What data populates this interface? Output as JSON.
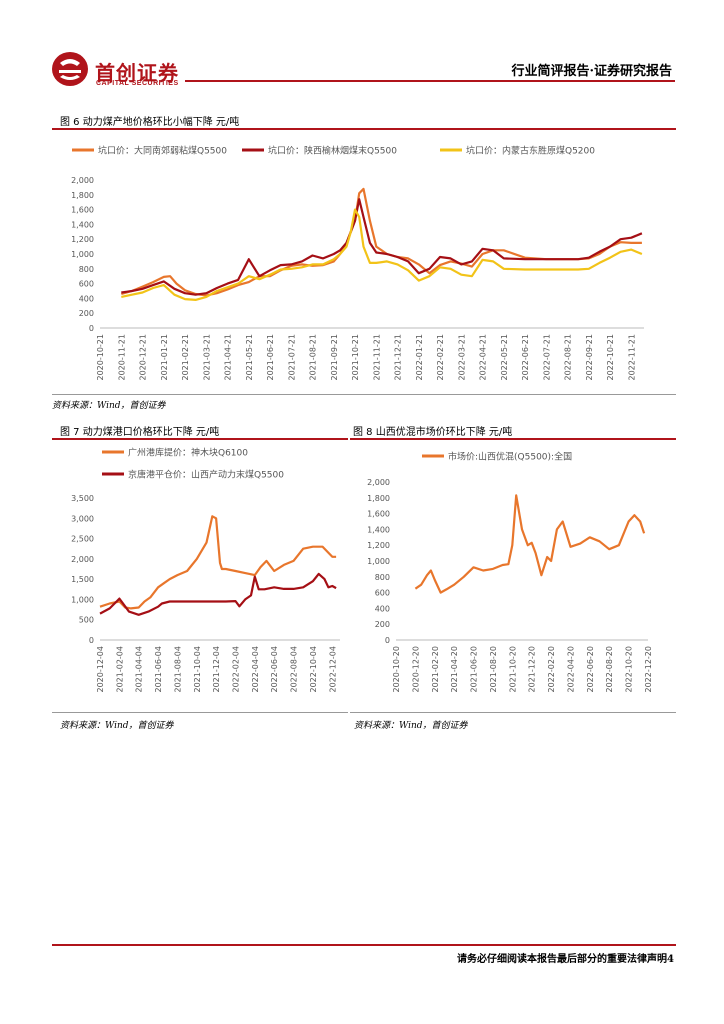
{
  "header": {
    "logo_cn": "首创证券",
    "logo_en": "CAPITAL SECURITIES",
    "right_title": "行业简评报告·证券研究报告",
    "brand_color": "#b0141b"
  },
  "fig6": {
    "title": "图 6 动力煤产地价格环比小幅下降 元/吨",
    "source": "资料来源：Wind，首创证券"
  },
  "fig7": {
    "title": "图 7 动力煤港口价格环比下降 元/吨",
    "source": "资料来源：Wind，首创证券"
  },
  "fig8": {
    "title": "图 8 山西优混市场价环比下降 元/吨",
    "source": "资料来源：Wind，首创证券"
  },
  "footer": {
    "text": "请务必仔细阅读本报告最后部分的重要法律声明4"
  },
  "chart_data": [
    {
      "id": "fig6",
      "type": "line",
      "ylim": [
        0,
        2000
      ],
      "yticks": [
        "0",
        "200",
        "400",
        "600",
        "800",
        "1,000",
        "1,200",
        "1,400",
        "1,600",
        "1,800",
        "2,000"
      ],
      "xticks": [
        "2020-10-21",
        "2020-11-21",
        "2020-12-21",
        "2021-01-21",
        "2021-02-21",
        "2021-03-21",
        "2021-04-21",
        "2021-05-21",
        "2021-06-21",
        "2021-07-21",
        "2021-08-21",
        "2021-09-21",
        "2021-10-21",
        "2021-11-21",
        "2021-12-21",
        "2022-01-21",
        "2022-02-21",
        "2022-03-21",
        "2022-04-21",
        "2022-05-21",
        "2022-06-21",
        "2022-07-21",
        "2022-08-21",
        "2022-09-21",
        "2022-10-21",
        "2022-11-21"
      ],
      "x_range": [
        0,
        25.6
      ],
      "series": [
        {
          "name": "坑口价：大同南郊弱粘煤Q5500",
          "color": "#e8762c",
          "x": [
            1,
            1.5,
            2,
            2.5,
            3,
            3.3,
            3.6,
            4,
            4.5,
            5,
            5.5,
            6,
            6.5,
            7,
            7.5,
            8,
            8.5,
            9,
            9.5,
            10,
            10.5,
            11,
            11.3,
            11.6,
            11.8,
            12,
            12.2,
            12.4,
            12.7,
            13,
            13.5,
            14,
            14.5,
            15,
            15.5,
            16,
            16.5,
            17,
            17.5,
            18,
            18.5,
            19,
            20,
            21,
            22,
            22.5,
            23,
            23.5,
            24,
            24.5,
            25,
            25.5
          ],
          "y": [
            460,
            500,
            560,
            620,
            690,
            700,
            600,
            510,
            460,
            440,
            470,
            520,
            580,
            620,
            700,
            700,
            780,
            840,
            860,
            840,
            850,
            900,
            1000,
            1150,
            1300,
            1450,
            1820,
            1880,
            1450,
            1100,
            1000,
            960,
            940,
            860,
            740,
            850,
            900,
            870,
            830,
            1000,
            1050,
            1050,
            950,
            930,
            930,
            930,
            940,
            1000,
            1100,
            1160,
            1150,
            1150
          ]
        },
        {
          "name": "坑口价：陕西榆林烟煤末Q5500",
          "color": "#a50f15",
          "x": [
            1,
            1.5,
            2,
            2.5,
            3,
            3.5,
            4,
            4.5,
            5,
            5.5,
            6,
            6.5,
            7,
            7.5,
            8,
            8.5,
            9,
            9.5,
            10,
            10.5,
            11,
            11.3,
            11.6,
            11.8,
            12,
            12.2,
            12.4,
            12.7,
            13,
            13.5,
            14,
            14.5,
            15,
            15.5,
            16,
            16.5,
            17,
            17.5,
            18,
            18.5,
            19,
            20,
            21,
            22,
            22.5,
            23,
            23.5,
            24,
            24.5,
            25,
            25.5
          ],
          "y": [
            480,
            500,
            530,
            580,
            630,
            530,
            470,
            450,
            470,
            540,
            600,
            650,
            930,
            700,
            780,
            850,
            860,
            900,
            980,
            940,
            1000,
            1050,
            1150,
            1300,
            1450,
            1740,
            1500,
            1150,
            1020,
            1000,
            960,
            900,
            740,
            800,
            960,
            940,
            860,
            900,
            1070,
            1050,
            940,
            930,
            930,
            930,
            930,
            950,
            1030,
            1100,
            1200,
            1220,
            1280
          ]
        },
        {
          "name": "坑口价：内蒙古东胜原煤Q5200",
          "color": "#f2c318",
          "x": [
            1,
            1.5,
            2,
            2.5,
            3,
            3.5,
            4,
            4.5,
            5,
            5.5,
            6,
            6.5,
            7,
            7.5,
            8,
            8.5,
            9,
            9.5,
            10,
            10.5,
            11,
            11.3,
            11.6,
            11.8,
            12,
            12.2,
            12.4,
            12.7,
            13,
            13.5,
            14,
            14.5,
            15,
            15.5,
            16,
            16.5,
            17,
            17.5,
            18,
            18.5,
            19,
            20,
            21,
            22,
            22.5,
            23,
            23.5,
            24,
            24.5,
            25,
            25.5
          ],
          "y": [
            420,
            450,
            480,
            540,
            580,
            450,
            390,
            380,
            420,
            500,
            550,
            600,
            700,
            660,
            720,
            790,
            800,
            820,
            860,
            860,
            930,
            1000,
            1100,
            1300,
            1600,
            1500,
            1100,
            880,
            880,
            900,
            860,
            780,
            640,
            700,
            820,
            800,
            720,
            700,
            920,
            900,
            800,
            790,
            790,
            790,
            790,
            800,
            880,
            950,
            1030,
            1060,
            1000
          ]
        }
      ]
    },
    {
      "id": "fig7",
      "type": "line",
      "ylim": [
        0,
        3500
      ],
      "yticks": [
        "0",
        "500",
        "1,000",
        "1,500",
        "2,000",
        "2,500",
        "3,000",
        "3,500"
      ],
      "xticks": [
        "2020-12-04",
        "2021-02-04",
        "2021-04-04",
        "2021-06-04",
        "2021-08-04",
        "2021-10-04",
        "2021-12-04",
        "2022-02-04",
        "2022-04-04",
        "2022-06-04",
        "2022-08-04",
        "2022-10-04",
        "2022-12-04"
      ],
      "x_range": [
        0,
        12.4
      ],
      "series": [
        {
          "name": "广州港库提价：神木块Q6100",
          "color": "#e8762c",
          "x": [
            0,
            0.5,
            1,
            1.3,
            1.6,
            2,
            2.3,
            2.6,
            3,
            3.3,
            3.6,
            4,
            4.5,
            5,
            5.5,
            5.8,
            6,
            6.2,
            6.3,
            6.5,
            7,
            7.5,
            8,
            8.3,
            8.6,
            9,
            9.5,
            10,
            10.5,
            11,
            11.5,
            12,
            12.2
          ],
          "y": [
            820,
            900,
            950,
            800,
            780,
            800,
            950,
            1050,
            1300,
            1400,
            1500,
            1600,
            1700,
            2000,
            2400,
            3050,
            3000,
            1900,
            1750,
            1750,
            1700,
            1650,
            1600,
            1800,
            1950,
            1700,
            1850,
            1950,
            2250,
            2300,
            2300,
            2050,
            2050
          ]
        },
        {
          "name": "京唐港平仓价：山西产动力末煤Q5500",
          "color": "#a50f15",
          "x": [
            0,
            0.5,
            1,
            1.5,
            2,
            2.5,
            3,
            3.2,
            3.6,
            4,
            4.5,
            5,
            5.5,
            6,
            6.5,
            7,
            7.2,
            7.5,
            7.8,
            8,
            8.2,
            8.5,
            9,
            9.5,
            10,
            10.5,
            11,
            11.3,
            11.6,
            11.8,
            12,
            12.2
          ],
          "y": [
            650,
            780,
            1020,
            700,
            620,
            700,
            820,
            900,
            950,
            950,
            950,
            950,
            950,
            950,
            950,
            960,
            830,
            1000,
            1100,
            1560,
            1250,
            1250,
            1300,
            1260,
            1260,
            1300,
            1450,
            1630,
            1500,
            1300,
            1330,
            1280
          ]
        }
      ]
    },
    {
      "id": "fig8",
      "type": "line",
      "ylim": [
        0,
        2000
      ],
      "yticks": [
        "0",
        "200",
        "400",
        "600",
        "800",
        "1,000",
        "1,200",
        "1,400",
        "1,600",
        "1,800",
        "2,000"
      ],
      "xticks": [
        "2020-10-20",
        "2020-12-20",
        "2021-02-20",
        "2021-04-20",
        "2021-06-20",
        "2021-08-20",
        "2021-10-20",
        "2021-12-20",
        "2022-02-20",
        "2022-04-20",
        "2022-06-20",
        "2022-08-20",
        "2022-10-20",
        "2022-12-20"
      ],
      "x_range": [
        0,
        13
      ],
      "series": [
        {
          "name": "市场价:山西优混(Q5500):全国",
          "color": "#e8762c",
          "x": [
            1,
            1.3,
            1.6,
            1.8,
            2,
            2.3,
            2.6,
            3,
            3.5,
            4,
            4.5,
            5,
            5.5,
            5.8,
            6,
            6.2,
            6.5,
            6.8,
            7,
            7.2,
            7.5,
            7.8,
            8,
            8.3,
            8.6,
            9,
            9.5,
            10,
            10.5,
            11,
            11.5,
            12,
            12.3,
            12.6,
            12.8
          ],
          "y": [
            650,
            700,
            820,
            880,
            760,
            600,
            640,
            700,
            800,
            920,
            880,
            900,
            950,
            960,
            1200,
            1830,
            1400,
            1200,
            1230,
            1100,
            820,
            1050,
            1000,
            1400,
            1500,
            1180,
            1220,
            1300,
            1250,
            1150,
            1200,
            1500,
            1580,
            1500,
            1350
          ]
        }
      ]
    }
  ]
}
